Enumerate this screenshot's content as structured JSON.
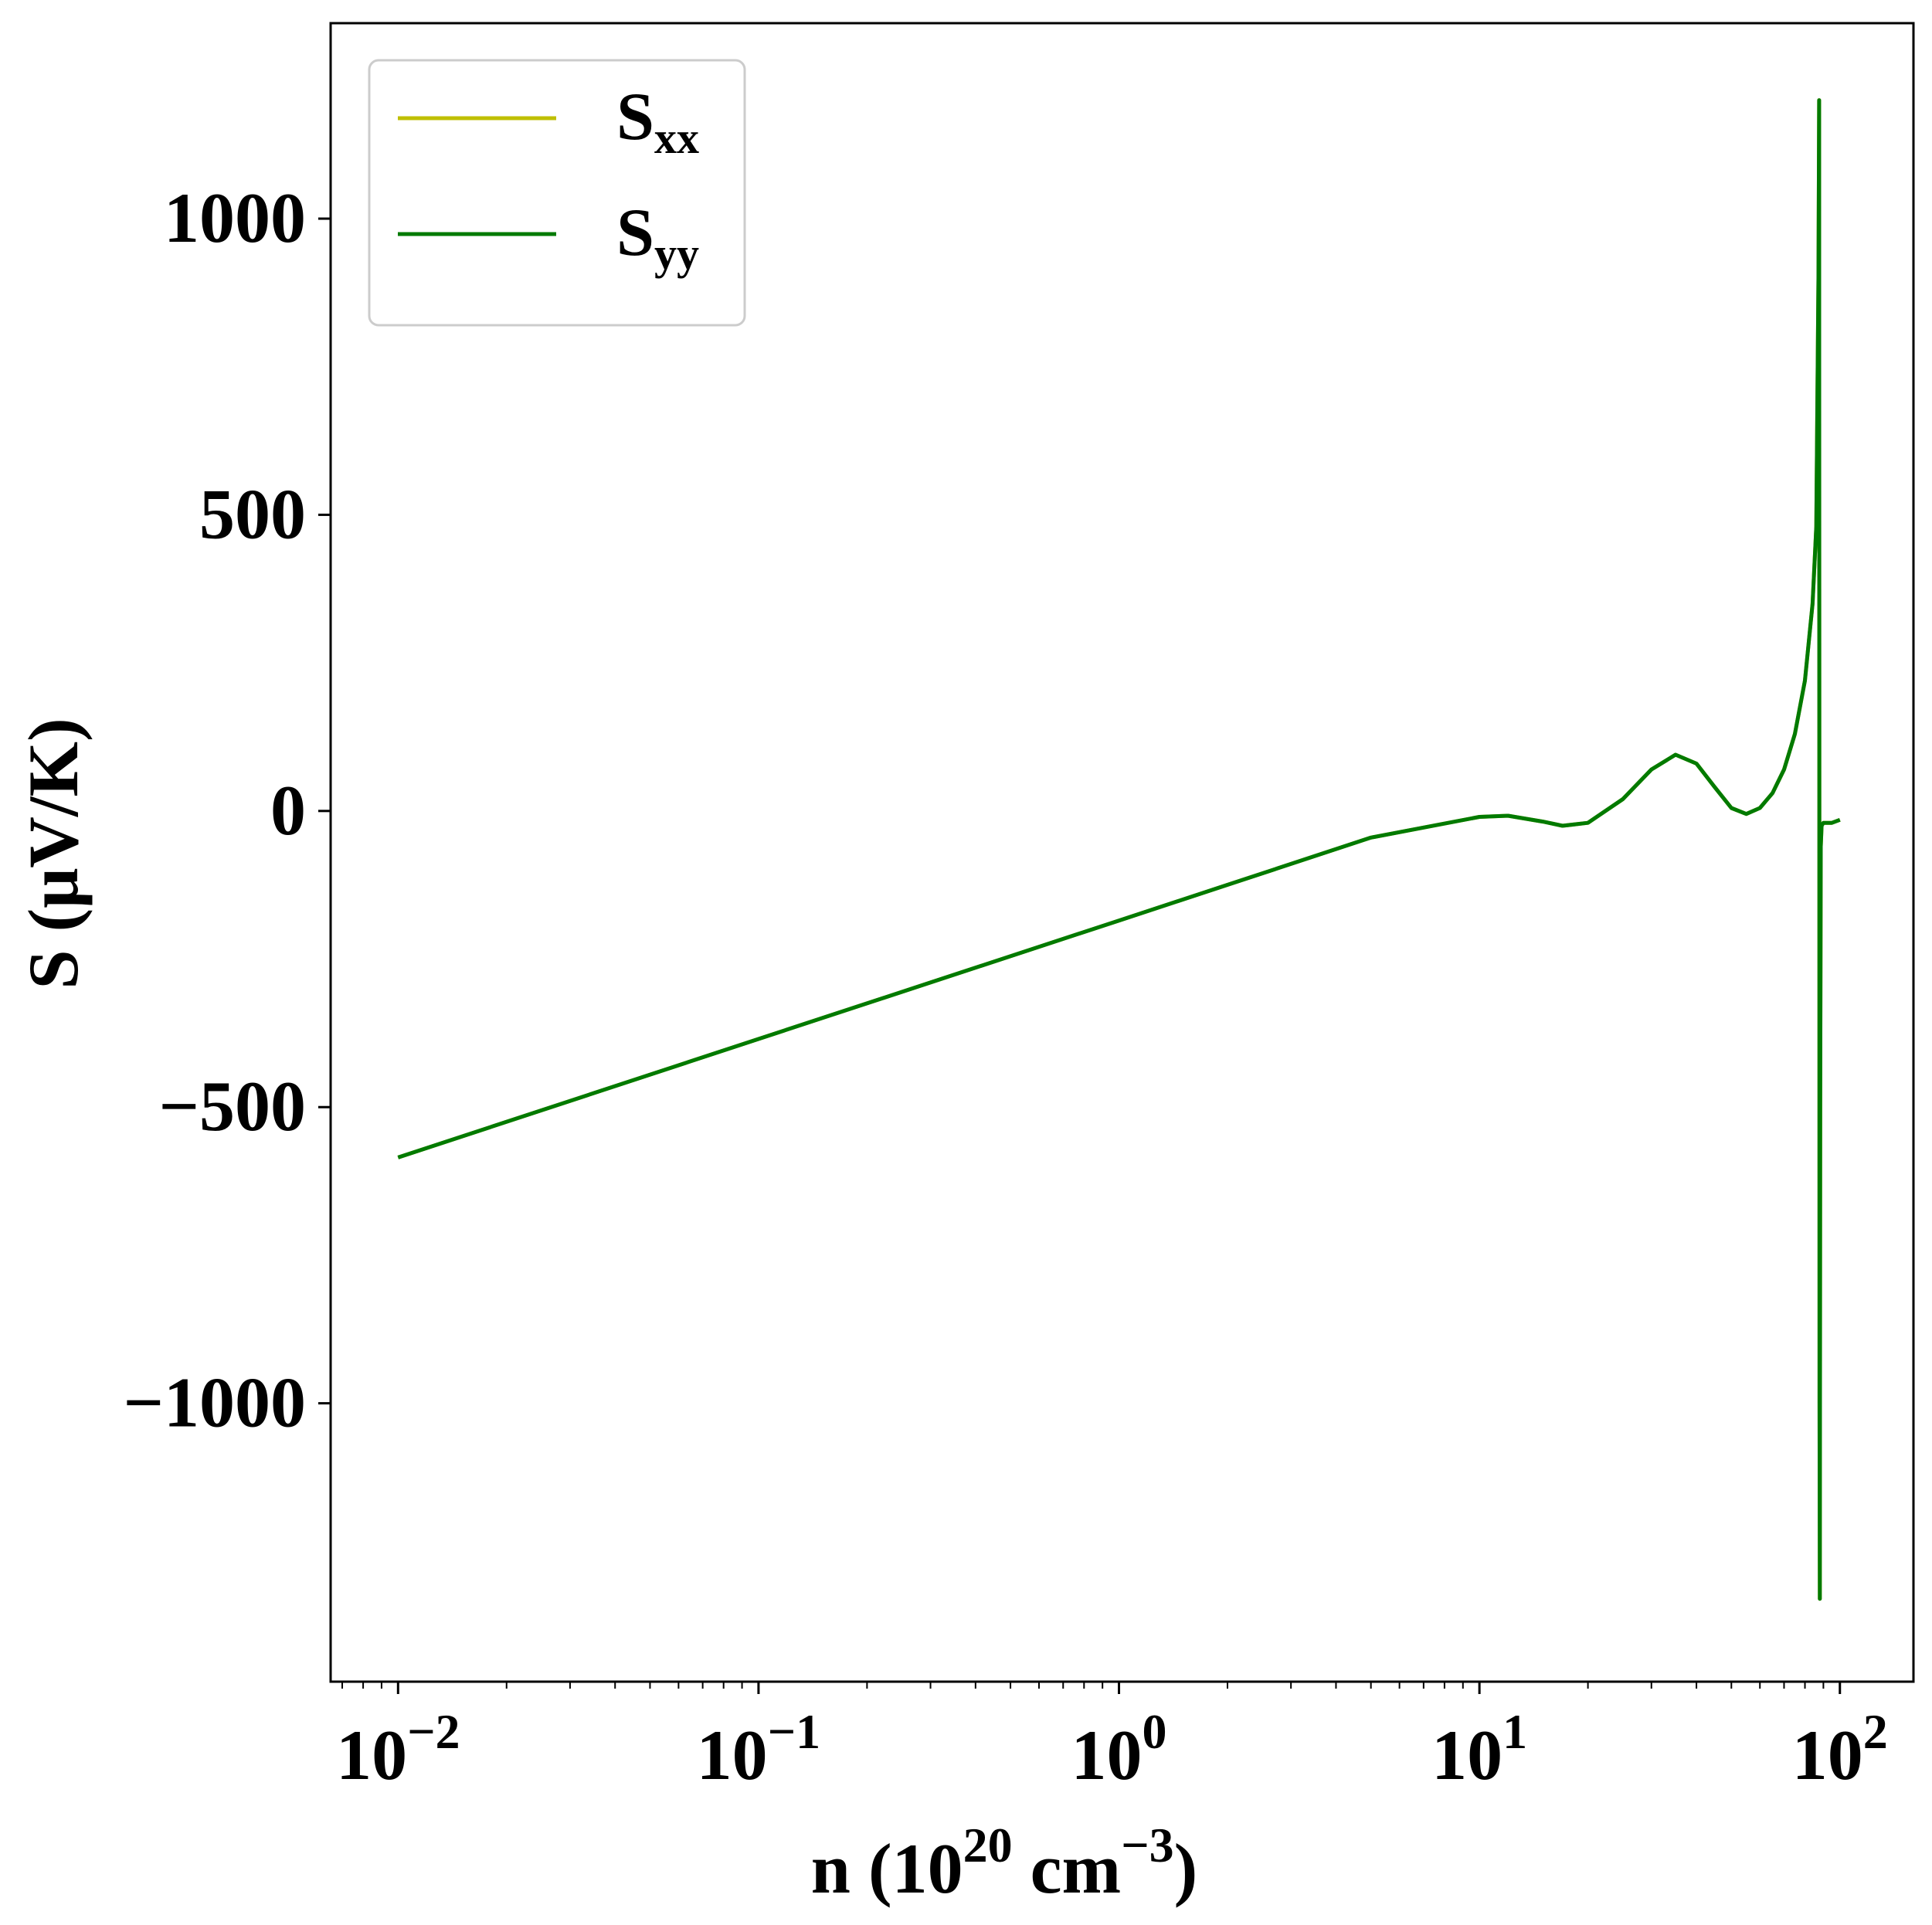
{
  "chart_data": {
    "type": "line",
    "xscale": "log",
    "xlim": [
      0.0065,
      160
    ],
    "ylim": [
      -1470,
      1330
    ],
    "x_ticks": [
      {
        "value": 0.01,
        "base": "10",
        "exp": "−2"
      },
      {
        "value": 0.1,
        "base": "10",
        "exp": "−1"
      },
      {
        "value": 1,
        "base": "10",
        "exp": "0"
      },
      {
        "value": 10,
        "base": "10",
        "exp": "1"
      },
      {
        "value": 100,
        "base": "10",
        "exp": "2"
      }
    ],
    "y_ticks": [
      {
        "value": 1000,
        "label": "1000"
      },
      {
        "value": 500,
        "label": "500"
      },
      {
        "value": 0,
        "label": "0"
      },
      {
        "value": -500,
        "label": "−500"
      },
      {
        "value": -1000,
        "label": "−1000"
      }
    ],
    "xlabel": {
      "pre": "n (10",
      "sup1": "20",
      "mid": " cm",
      "sup2": "−3",
      "post": ")"
    },
    "ylabel": "S (μV/K)",
    "legend_position": "upper-left",
    "series": [
      {
        "name": "xx",
        "label_main": "S",
        "label_sub": "xx",
        "color": "#bfbf00",
        "x": [
          0.01,
          0.1,
          1,
          5,
          10,
          12,
          15,
          17,
          20,
          25,
          30,
          35,
          40,
          45,
          50,
          55,
          60,
          65,
          70,
          75,
          80,
          84,
          86,
          87.2,
          87.6,
          87.8,
          88.0,
          88.2,
          88.5,
          89,
          90,
          95,
          100
        ],
        "y": [
          -585,
          -385,
          -185,
          -45,
          -10,
          -8,
          -18,
          -25,
          -20,
          20,
          70,
          95,
          80,
          40,
          5,
          -5,
          5,
          30,
          70,
          130,
          220,
          350,
          480,
          900,
          1200,
          -1000,
          -1330,
          -500,
          -60,
          -25,
          -20,
          -20,
          -15
        ]
      },
      {
        "name": "yy",
        "label_main": "S",
        "label_sub": "yy",
        "color": "#007a00",
        "x": [
          0.01,
          0.1,
          1,
          5,
          10,
          12,
          15,
          17,
          20,
          25,
          30,
          35,
          40,
          45,
          50,
          55,
          60,
          65,
          70,
          75,
          80,
          84,
          86,
          87.2,
          87.6,
          87.8,
          88.0,
          88.2,
          88.5,
          89,
          90,
          95,
          100
        ],
        "y": [
          -585,
          -385,
          -185,
          -45,
          -10,
          -8,
          -18,
          -25,
          -20,
          20,
          70,
          95,
          80,
          40,
          5,
          -5,
          5,
          30,
          70,
          130,
          220,
          350,
          480,
          900,
          1200,
          -1000,
          -1330,
          -500,
          -60,
          -25,
          -20,
          -20,
          -15
        ]
      }
    ]
  }
}
